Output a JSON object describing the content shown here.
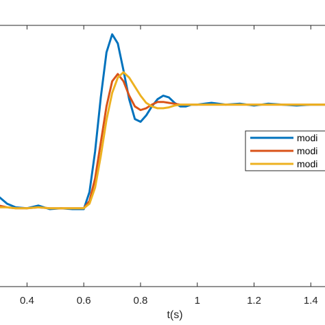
{
  "chart_data": {
    "type": "line",
    "xlabel": "t(s)",
    "ylabel": "",
    "title": "",
    "xlim": [
      0.3,
      1.45
    ],
    "ylim": [
      -1.3,
      1.6
    ],
    "x_ticks": [
      0.4,
      0.6,
      0.8,
      1,
      1.2,
      1.4
    ],
    "x_tick_labels": [
      "0.4",
      "0.6",
      "0.8",
      "1",
      "1.2",
      "1.4"
    ],
    "grid": false,
    "legend": {
      "placement": "right",
      "labels": [
        "modi",
        "modi",
        "modi"
      ]
    },
    "series": [
      {
        "name": "modi",
        "color": "#0072BD",
        "x": [
          0.3,
          0.33,
          0.36,
          0.4,
          0.44,
          0.48,
          0.52,
          0.56,
          0.6,
          0.62,
          0.64,
          0.66,
          0.68,
          0.7,
          0.72,
          0.74,
          0.76,
          0.78,
          0.8,
          0.82,
          0.84,
          0.86,
          0.88,
          0.9,
          0.92,
          0.94,
          0.96,
          0.98,
          1.0,
          1.05,
          1.1,
          1.15,
          1.2,
          1.25,
          1.3,
          1.35,
          1.4,
          1.45
        ],
        "y": [
          -0.3,
          -0.38,
          -0.42,
          -0.43,
          -0.4,
          -0.44,
          -0.43,
          -0.44,
          -0.44,
          -0.25,
          0.2,
          0.8,
          1.3,
          1.5,
          1.4,
          1.1,
          0.78,
          0.56,
          0.53,
          0.6,
          0.7,
          0.78,
          0.82,
          0.8,
          0.74,
          0.7,
          0.7,
          0.72,
          0.72,
          0.74,
          0.72,
          0.73,
          0.71,
          0.73,
          0.72,
          0.71,
          0.72,
          0.72
        ]
      },
      {
        "name": "modi",
        "color": "#D95319",
        "x": [
          0.3,
          0.33,
          0.36,
          0.4,
          0.44,
          0.48,
          0.52,
          0.56,
          0.6,
          0.62,
          0.64,
          0.66,
          0.68,
          0.7,
          0.72,
          0.74,
          0.76,
          0.78,
          0.8,
          0.82,
          0.84,
          0.86,
          0.88,
          0.9,
          0.92,
          0.94,
          0.96,
          0.98,
          1.0,
          1.05,
          1.1,
          1.15,
          1.2,
          1.25,
          1.3,
          1.35,
          1.4,
          1.45
        ],
        "y": [
          -0.4,
          -0.42,
          -0.43,
          -0.43,
          -0.42,
          -0.43,
          -0.43,
          -0.43,
          -0.43,
          -0.35,
          -0.1,
          0.3,
          0.7,
          0.98,
          1.06,
          0.98,
          0.82,
          0.7,
          0.66,
          0.68,
          0.72,
          0.75,
          0.75,
          0.74,
          0.73,
          0.72,
          0.72,
          0.72,
          0.72,
          0.72,
          0.72,
          0.72,
          0.72,
          0.72,
          0.72,
          0.72,
          0.72,
          0.72
        ]
      },
      {
        "name": "modi",
        "color": "#EDB120",
        "x": [
          0.3,
          0.33,
          0.36,
          0.4,
          0.44,
          0.48,
          0.52,
          0.56,
          0.6,
          0.62,
          0.64,
          0.66,
          0.68,
          0.7,
          0.72,
          0.74,
          0.76,
          0.78,
          0.8,
          0.82,
          0.84,
          0.86,
          0.88,
          0.9,
          0.92,
          0.94,
          0.96,
          0.98,
          1.0,
          1.05,
          1.1,
          1.15,
          1.2,
          1.25,
          1.3,
          1.35,
          1.4,
          1.45
        ],
        "y": [
          -0.42,
          -0.42,
          -0.43,
          -0.43,
          -0.42,
          -0.43,
          -0.43,
          -0.43,
          -0.43,
          -0.38,
          -0.2,
          0.15,
          0.55,
          0.85,
          1.02,
          1.08,
          1.02,
          0.92,
          0.82,
          0.74,
          0.7,
          0.68,
          0.68,
          0.69,
          0.71,
          0.72,
          0.72,
          0.72,
          0.72,
          0.72,
          0.72,
          0.72,
          0.72,
          0.72,
          0.72,
          0.72,
          0.72,
          0.72
        ]
      }
    ]
  }
}
